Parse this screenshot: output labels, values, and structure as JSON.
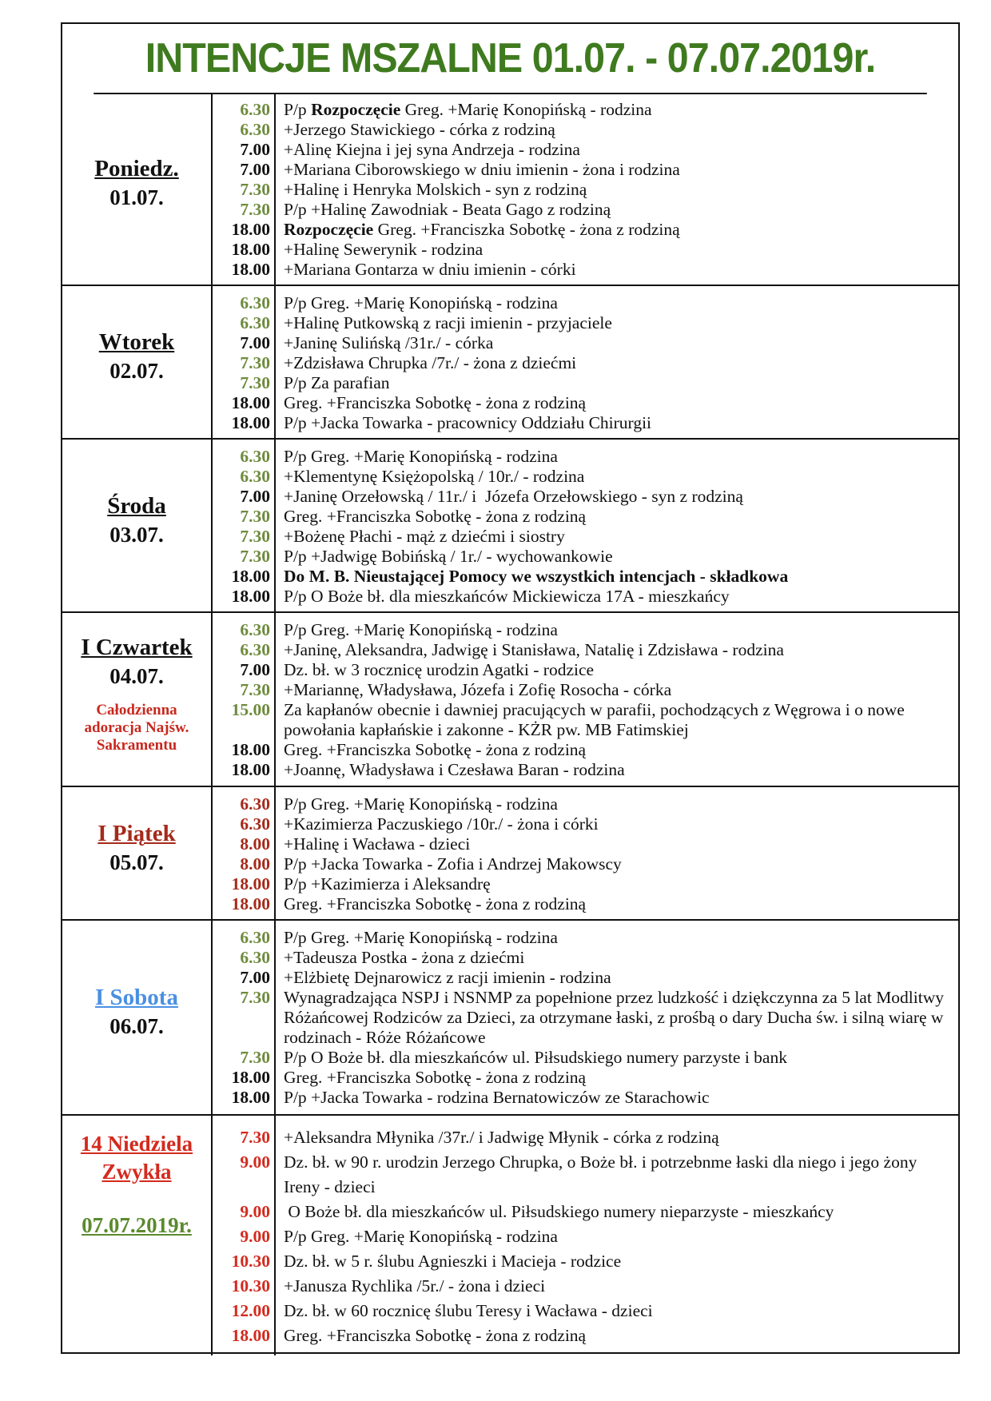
{
  "title": "INTENCJE MSZALNE 01.07. - 07.07.2019r.",
  "colors": {
    "title": "#3f7a1f",
    "green": "#6e8b3d",
    "black": "#111111",
    "darkred": "#a52a1a",
    "red": "#d42a1e",
    "blue": "#4a90e2"
  },
  "days": [
    {
      "label": "Poniedz.",
      "date": "01.07.",
      "label_color": "#111111",
      "entries": [
        {
          "time": "6.30",
          "time_color": "#6e8b3d",
          "pre": "P/p ",
          "bold": "Rozpoczęcie",
          "text": " Greg. +Marię Konopińską - rodzina"
        },
        {
          "time": "6.30",
          "time_color": "#6e8b3d",
          "text": "+Jerzego Stawickiego - córka z rodziną"
        },
        {
          "time": "7.00",
          "time_color": "#111111",
          "text": "+Alinę Kiejna i jej syna Andrzeja - rodzina"
        },
        {
          "time": "7.00",
          "time_color": "#111111",
          "text": "+Mariana Ciborowskiego w dniu imienin - żona i rodzina"
        },
        {
          "time": "7.30",
          "time_color": "#6e8b3d",
          "text": "+Halinę i Henryka Molskich - syn z rodziną"
        },
        {
          "time": "7.30",
          "time_color": "#6e8b3d",
          "text": "P/p +Halinę Zawodniak - Beata Gago z rodziną"
        },
        {
          "time": "18.00",
          "time_color": "#111111",
          "bold": "Rozpoczęcie",
          "text": " Greg. +Franciszka Sobotkę - żona z rodziną"
        },
        {
          "time": "18.00",
          "time_color": "#111111",
          "text": "+Halinę Sewerynik - rodzina"
        },
        {
          "time": "18.00",
          "time_color": "#111111",
          "text": "+Mariana Gontarza w dniu imienin - córki"
        }
      ]
    },
    {
      "label": "Wtorek",
      "date": "02.07.",
      "label_color": "#111111",
      "entries": [
        {
          "time": "6.30",
          "time_color": "#6e8b3d",
          "text": "P/p Greg. +Marię Konopińską - rodzina"
        },
        {
          "time": "6.30",
          "time_color": "#6e8b3d",
          "text": "+Halinę Putkowską z racji imienin - przyjaciele"
        },
        {
          "time": "7.00",
          "time_color": "#111111",
          "text": "+Janinę Sulińską /31r./ - córka"
        },
        {
          "time": "7.30",
          "time_color": "#6e8b3d",
          "text": "+Zdzisława Chrupka /7r./ - żona z dziećmi"
        },
        {
          "time": "7.30",
          "time_color": "#6e8b3d",
          "text": "P/p Za parafian"
        },
        {
          "time": "18.00",
          "time_color": "#111111",
          "text": "Greg. +Franciszka Sobotkę - żona z rodziną"
        },
        {
          "time": "18.00",
          "time_color": "#111111",
          "text": "P/p +Jacka Towarka - pracownicy Oddziału Chirurgii"
        }
      ]
    },
    {
      "label": "Środa",
      "date": "03.07.",
      "label_color": "#111111",
      "entries": [
        {
          "time": "6.30",
          "time_color": "#6e8b3d",
          "text": "P/p Greg. +Marię Konopińską - rodzina"
        },
        {
          "time": "6.30",
          "time_color": "#6e8b3d",
          "text": "+Klementynę Księżopolską / 10r./ - rodzina"
        },
        {
          "time": "7.00",
          "time_color": "#111111",
          "text": "+Janinę Orzełowską / 11r./ i  Józefa Orzełowskiego - syn z rodziną"
        },
        {
          "time": "7.30",
          "time_color": "#6e8b3d",
          "text": "Greg. +Franciszka Sobotkę - żona z rodziną"
        },
        {
          "time": "7.30",
          "time_color": "#6e8b3d",
          "text": "+Bożenę Płachi - mąż z dziećmi i siostry"
        },
        {
          "time": "7.30",
          "time_color": "#6e8b3d",
          "text": "P/p +Jadwigę Bobińską / 1r./ - wychowankowie"
        },
        {
          "time": "18.00",
          "time_color": "#111111",
          "bold": "Do M. B. Nieustającej Pomocy we wszystkich intencjach - składkowa"
        },
        {
          "time": "18.00",
          "time_color": "#111111",
          "text": "P/p O Boże bł. dla mieszkańców Mickiewicza 17A - mieszkańcy"
        }
      ]
    },
    {
      "label": "I Czwartek",
      "date": "04.07.",
      "label_color": "#111111",
      "note": "Całodzienna adoracja Najśw. Sakramentu",
      "entries": [
        {
          "time": "6.30",
          "time_color": "#6e8b3d",
          "text": "P/p Greg. +Marię Konopińską - rodzina"
        },
        {
          "time": "6.30",
          "time_color": "#6e8b3d",
          "text": "+Janinę, Aleksandra, Jadwigę i Stanisława, Natalię i Zdzisława - rodzina"
        },
        {
          "time": "7.00",
          "time_color": "#111111",
          "text": "Dz. bł. w 3 rocznicę urodzin Agatki - rodzice"
        },
        {
          "time": "7.30",
          "time_color": "#6e8b3d",
          "text": "+Mariannę, Władysława, Józefa i Zofię Rosocha - córka"
        },
        {
          "time": "15.00",
          "time_color": "#6e8b3d",
          "text": "Za kapłanów obecnie i dawniej pracujących w parafii, pochodzących z Węgrowa i o nowe powołania kapłańskie i zakonne - KŻR pw. MB Fatimskiej"
        },
        {
          "time": "18.00",
          "time_color": "#111111",
          "text": "Greg. +Franciszka Sobotkę - żona z rodziną"
        },
        {
          "time": "18.00",
          "time_color": "#111111",
          "text": "+Joannę, Władysława i Czesława Baran - rodzina"
        }
      ]
    },
    {
      "label": "I Piątek",
      "date": "05.07.",
      "label_color": "#a52a1a",
      "entries": [
        {
          "time": "6.30",
          "time_color": "#a52a1a",
          "text": "P/p Greg. +Marię Konopińską - rodzina"
        },
        {
          "time": "6.30",
          "time_color": "#a52a1a",
          "text": "+Kazimierza Paczuskiego /10r./ - żona i córki"
        },
        {
          "time": "8.00",
          "time_color": "#a52a1a",
          "text": "+Halinę i Wacława - dzieci"
        },
        {
          "time": "8.00",
          "time_color": "#a52a1a",
          "text": "P/p +Jacka Towarka - Zofia i Andrzej Makowscy"
        },
        {
          "time": "18.00",
          "time_color": "#a52a1a",
          "text": "P/p +Kazimierza i Aleksandrę"
        },
        {
          "time": "18.00",
          "time_color": "#a52a1a",
          "text": "Greg. +Franciszka Sobotkę - żona z rodziną"
        }
      ]
    },
    {
      "label": "I Sobota",
      "date": "06.07.",
      "label_color": "#4a90e2",
      "entries": [
        {
          "time": "6.30",
          "time_color": "#6e8b3d",
          "text": "P/p Greg. +Marię Konopińską - rodzina"
        },
        {
          "time": "6.30",
          "time_color": "#6e8b3d",
          "text": "+Tadeusza Postka - żona z dziećmi"
        },
        {
          "time": "7.00",
          "time_color": "#111111",
          "text": "+Elżbietę Dejnarowicz z racji imienin - rodzina"
        },
        {
          "time": "7.30",
          "time_color": "#6e8b3d",
          "text": "Wynagradzająca NSPJ i NSNMP za popełnione przez ludzkość i dziękczynna za 5 lat Modlitwy Różańcowej Rodziców za Dzieci, za otrzymane łaski, z prośbą o dary Ducha św. i silną wiarę w rodzinach - Róże Różańcowe"
        },
        {
          "time": "7.30",
          "time_color": "#6e8b3d",
          "text": "P/p O Boże bł. dla mieszkańców ul. Piłsudskiego numery parzyste i bank"
        },
        {
          "time": "18.00",
          "time_color": "#111111",
          "text": "Greg. +Franciszka Sobotkę - żona z rodziną"
        },
        {
          "time": "18.00",
          "time_color": "#111111",
          "text": "P/p +Jacka Towarka - rodzina Bernatowiczów ze Starachowic"
        }
      ]
    },
    {
      "label": "14 Niedziela Zwykła",
      "date": "07.07.2019r.",
      "label_color": "#d42a1e",
      "date_color": "#5b8a2e",
      "entries": [
        {
          "time": "7.30",
          "time_color": "#d42a1e",
          "text": "+Aleksandra Młynika /37r./ i Jadwigę Młynik - córka z rodziną"
        },
        {
          "time": "9.00",
          "time_color": "#d42a1e",
          "text": "Dz. bł. w 90 r. urodzin Jerzego Chrupka, o Boże bł. i potrzebnme łaski dla niego i jego żony Ireny - dzieci"
        },
        {
          "time": "9.00",
          "time_color": "#d42a1e",
          "text": " O Boże bł. dla mieszkańców ul. Piłsudskiego numery nieparzyste - mieszkańcy"
        },
        {
          "time": "9.00",
          "time_color": "#d42a1e",
          "text": "P/p Greg. +Marię Konopińską - rodzina"
        },
        {
          "time": "10.30",
          "time_color": "#d42a1e",
          "text": "Dz. bł. w 5 r. ślubu Agnieszki i Macieja - rodzice"
        },
        {
          "time": "10.30",
          "time_color": "#d42a1e",
          "text": "+Janusza Rychlika /5r./ - żona i dzieci"
        },
        {
          "time": "12.00",
          "time_color": "#d42a1e",
          "text": "Dz. bł. w 60 rocznicę ślubu Teresy i Wacława - dzieci"
        },
        {
          "time": "18.00",
          "time_color": "#d42a1e",
          "text": "Greg. +Franciszka Sobotkę - żona z rodziną"
        }
      ]
    }
  ]
}
